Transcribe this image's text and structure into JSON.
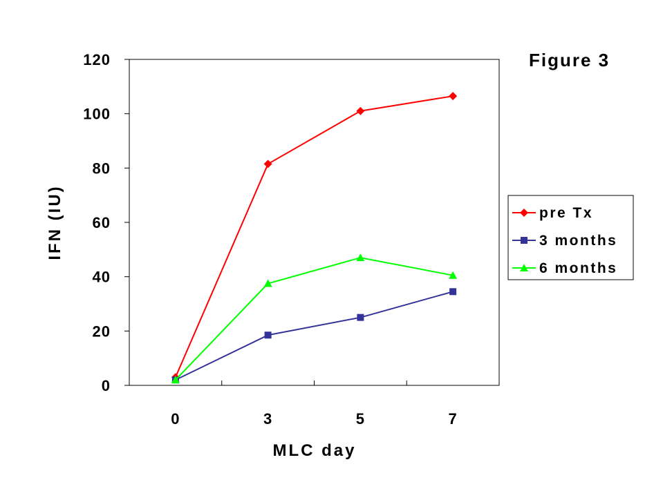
{
  "figure_label": "Figure 3",
  "chart_data": {
    "type": "line",
    "title": "",
    "xlabel": "MLC day",
    "ylabel": "IFN (IU)",
    "categories": [
      "0",
      "3",
      "5",
      "7"
    ],
    "ylim": [
      0,
      120
    ],
    "yticks": [
      0,
      20,
      40,
      60,
      80,
      100,
      120
    ],
    "grid": false,
    "legend_position": "right",
    "series": [
      {
        "name": "pre Tx",
        "color": "#ff0000",
        "marker": "diamond",
        "values": [
          3,
          81.5,
          101,
          106.5
        ]
      },
      {
        "name": "3 months",
        "color": "#333399",
        "marker": "square",
        "values": [
          2,
          18.5,
          25,
          34.5
        ]
      },
      {
        "name": "6 months",
        "color": "#00ff00",
        "marker": "triangle",
        "values": [
          2,
          37.5,
          47,
          40.5
        ]
      }
    ]
  }
}
